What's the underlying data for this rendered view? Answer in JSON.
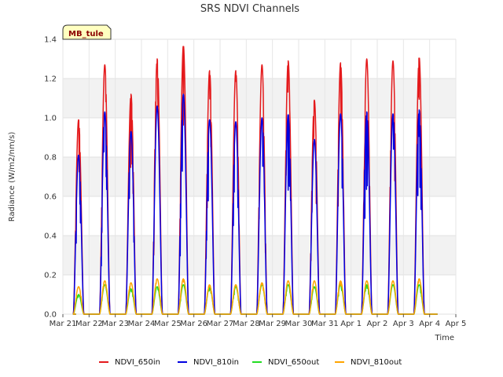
{
  "chart_data": {
    "type": "line",
    "title": "SRS NDVI Channels",
    "xlabel": "Time",
    "ylabel": "Radiance (W/m2/nm/s)",
    "badge": "MB_tule",
    "ylim": [
      0,
      1.4
    ],
    "yticks": [
      "0.0",
      "0.2",
      "0.4",
      "0.6",
      "0.8",
      "1.0",
      "1.2",
      "1.4"
    ],
    "xticks": [
      "Mar 21",
      "Mar 22",
      "Mar 23",
      "Mar 24",
      "Mar 25",
      "Mar 26",
      "Mar 27",
      "Mar 28",
      "Mar 29",
      "Mar 30",
      "Mar 31",
      "Apr 1",
      "Apr 2",
      "Apr 3",
      "Apr 4",
      "Apr 5"
    ],
    "xlim_days": [
      0,
      15
    ],
    "grid": true,
    "band_colors": [
      "#f2f2f2",
      "#ffffff"
    ],
    "legend_position": "bottom",
    "series": [
      {
        "name": "NDVI_650in",
        "color": "#e41a1c",
        "daily_peaks": [
          0.99,
          1.27,
          1.12,
          1.3,
          1.37,
          1.24,
          1.24,
          1.27,
          1.29,
          1.09,
          1.28,
          1.3,
          1.29,
          1.31
        ]
      },
      {
        "name": "NDVI_810in",
        "color": "#0000e0",
        "daily_peaks": [
          0.81,
          1.03,
          0.93,
          1.06,
          1.12,
          0.99,
          0.98,
          1.0,
          1.02,
          0.89,
          1.02,
          1.03,
          1.02,
          1.04
        ]
      },
      {
        "name": "NDVI_650out",
        "color": "#22dd22",
        "daily_peaks": [
          0.1,
          0.15,
          0.13,
          0.14,
          0.15,
          0.14,
          0.14,
          0.15,
          0.15,
          0.14,
          0.15,
          0.15,
          0.15,
          0.15
        ]
      },
      {
        "name": "NDVI_810out",
        "color": "#ffa500",
        "daily_peaks": [
          0.14,
          0.17,
          0.16,
          0.18,
          0.18,
          0.15,
          0.15,
          0.16,
          0.17,
          0.17,
          0.17,
          0.17,
          0.17,
          0.18
        ]
      }
    ],
    "day_offset": 0.6
  }
}
